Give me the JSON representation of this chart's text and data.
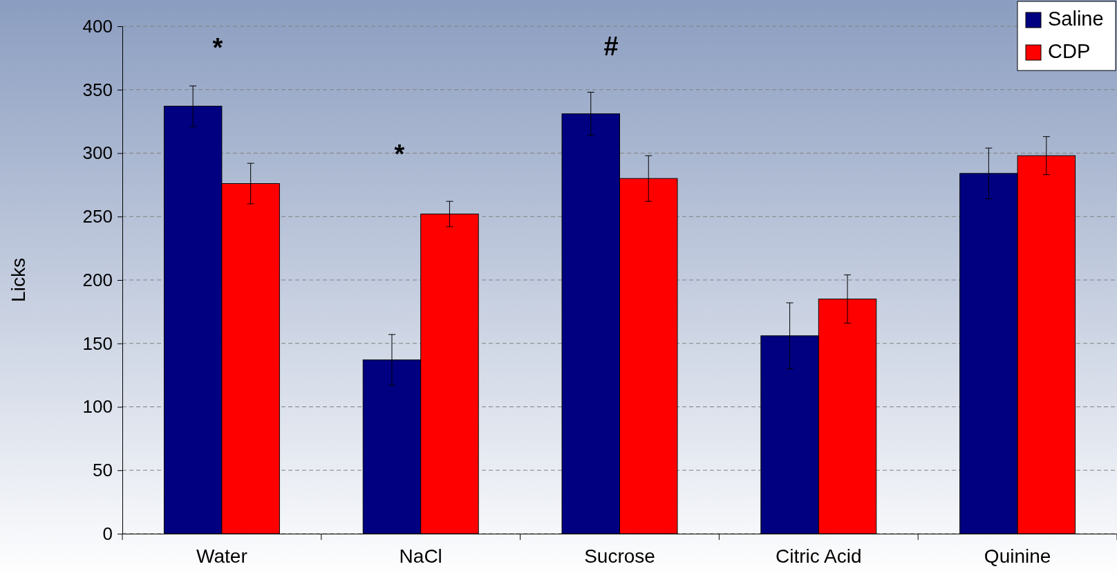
{
  "chart_data": {
    "type": "bar",
    "ylabel": "Licks",
    "categories": [
      "Water",
      "NaCl",
      "Sucrose",
      "Citric Acid",
      "Quinine"
    ],
    "series": [
      {
        "name": "Saline",
        "color": "#000080",
        "values": [
          337,
          137,
          331,
          156,
          284
        ],
        "errors": [
          16,
          20,
          17,
          26,
          20
        ]
      },
      {
        "name": "CDP",
        "color": "#ff0000",
        "values": [
          276,
          252,
          280,
          185,
          298
        ],
        "errors": [
          16,
          10,
          18,
          19,
          15
        ]
      }
    ],
    "ylim": [
      0,
      400
    ],
    "yticks": [
      0,
      50,
      100,
      150,
      200,
      250,
      300,
      350,
      400
    ],
    "grid": "y",
    "legend": "top right",
    "annotations": [
      "*",
      "*",
      "#"
    ]
  }
}
